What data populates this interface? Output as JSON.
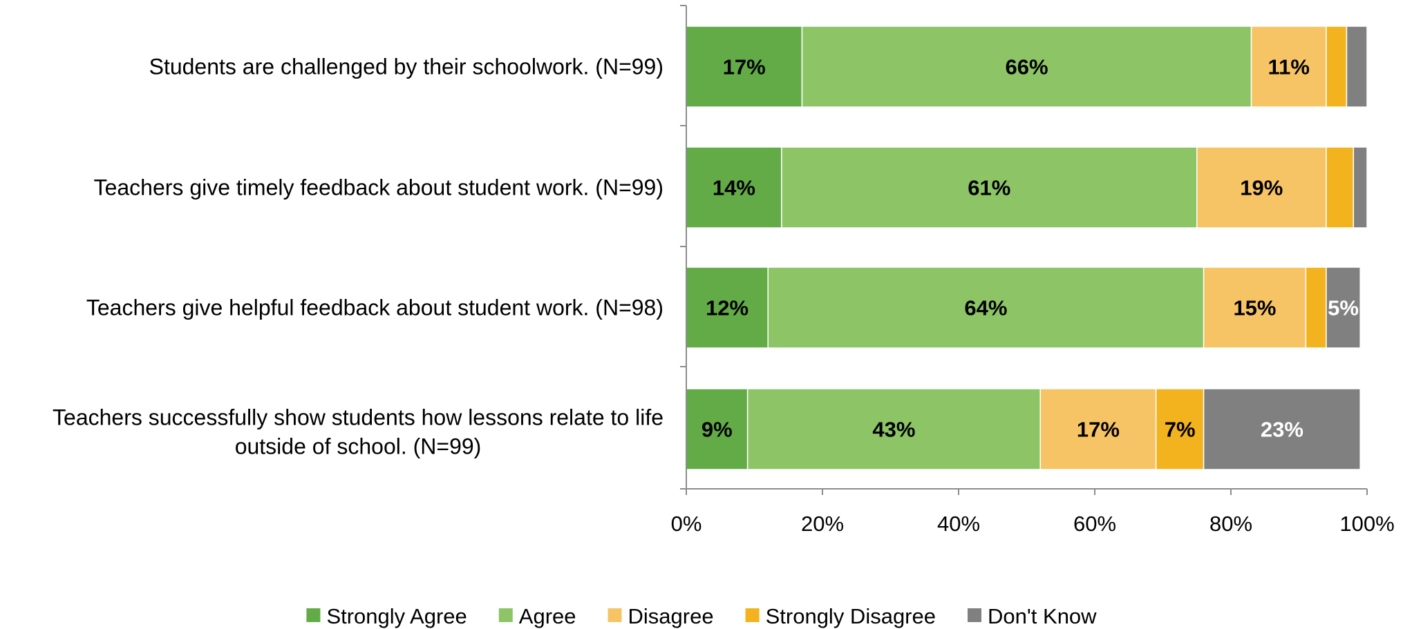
{
  "chart_data": {
    "type": "bar",
    "orientation": "horizontal",
    "stacked": true,
    "categories": [
      "Students are challenged by their schoolwork. (N=99)",
      "Teachers give timely feedback about student work. (N=99)",
      "Teachers give helpful feedback about student work. (N=98)",
      "Teachers successfully show students how lessons relate to life outside of school. (N=99)"
    ],
    "series": [
      {
        "name": "Strongly Agree",
        "color": "#62AB47",
        "label_color": "#000000",
        "values": [
          17,
          14,
          12,
          9
        ],
        "labels": [
          "17%",
          "14%",
          "12%",
          "9%"
        ]
      },
      {
        "name": "Agree",
        "color": "#8DC466",
        "label_color": "#000000",
        "values": [
          66,
          61,
          64,
          43
        ],
        "labels": [
          "66%",
          "61%",
          "64%",
          "43%"
        ]
      },
      {
        "name": "Disagree",
        "color": "#F7C465",
        "label_color": "#000000",
        "values": [
          11,
          19,
          15,
          17
        ],
        "labels": [
          "11%",
          "19%",
          "15%",
          "17%"
        ]
      },
      {
        "name": "Strongly Disagree",
        "color": "#F2B31E",
        "label_color": "#000000",
        "values": [
          3,
          4,
          3,
          7
        ],
        "labels": [
          "",
          "",
          "",
          "7%"
        ]
      },
      {
        "name": "Don't Know",
        "color": "#808080",
        "label_color": "#FFFFFF",
        "values": [
          3,
          2,
          5,
          23
        ],
        "labels": [
          "",
          "",
          "5%",
          "23%"
        ]
      }
    ],
    "xlim": [
      0,
      100
    ],
    "xticks": [
      "0%",
      "20%",
      "40%",
      "60%",
      "80%",
      "100%"
    ],
    "xlabel": "",
    "ylabel": "",
    "title": "",
    "grid": false,
    "legend_position": "bottom"
  }
}
